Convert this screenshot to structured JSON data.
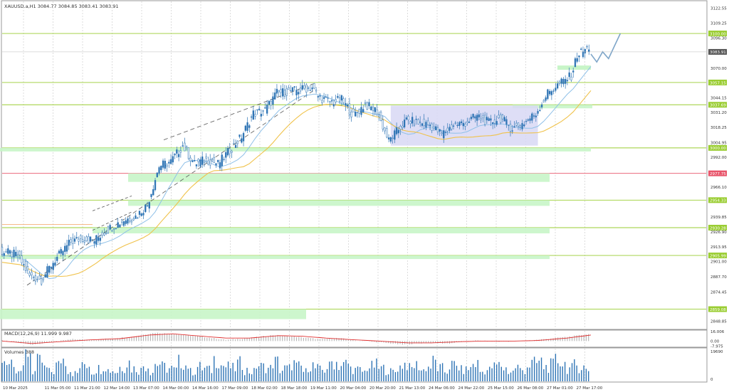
{
  "symbol_header": "XAUUSD.a,H1  3084.77 3084.85 3083.41 3083.91",
  "macd_header": "MACD(12,26,9) 11.999 9.987",
  "volume_header": "Volumes 388",
  "colors": {
    "background": "#ffffff",
    "grid": "#d4d4d4",
    "candle_up": "#2e74b5",
    "candle_down": "#2e74b5",
    "zone_fill": "#c8f5c8",
    "level_line": "#9acd32",
    "red_level": "#e8546a",
    "range_box": "#d8d8f5",
    "ma_fast": "#8fc0e8",
    "ma_slow": "#f0c24a",
    "macd_hist": "#b3b3b3",
    "macd_signal": "#e03030",
    "volume_bar": "#2e74b5"
  },
  "chart_data": [
    {
      "type": "candlestick",
      "title": "XAUUSD.a,H1",
      "current_price": 3083.91,
      "ylim": [
        2842,
        3128
      ],
      "y_ticks": [
        "3122.55",
        "3109.25",
        "3096.30",
        "3083.91",
        "3070.00",
        "3057.15",
        "3044.15",
        "3037.69",
        "3031.20",
        "3018.25",
        "3004.95",
        "3000.00",
        "2992.00",
        "2977.75",
        "2966.10",
        "2954.33",
        "2939.85",
        "2930.28",
        "2926.90",
        "2913.95",
        "2905.99",
        "2901.00",
        "2887.70",
        "2874.45",
        "2859.08",
        "2848.85"
      ],
      "x_ticks": [
        "10 Mar 2025",
        "11 Mar 05:00",
        "11 Mar 21:00",
        "12 Mar 14:00",
        "13 Mar 07:00",
        "14 Mar 00:00",
        "14 Mar 16:00",
        "17 Mar 09:00",
        "18 Mar 02:00",
        "18 Mar 18:00",
        "19 Mar 11:00",
        "20 Mar 04:00",
        "20 Mar 20:00",
        "21 Mar 13:00",
        "24 Mar 06:00",
        "24 Mar 22:00",
        "25 Mar 15:00",
        "26 Mar 08:00",
        "27 Mar 01:00",
        "27 Mar 17:00"
      ],
      "price_path": [
        [
          0,
          2910
        ],
        [
          3,
          2906
        ],
        [
          5,
          2888
        ],
        [
          7,
          2885
        ],
        [
          9,
          2900
        ],
        [
          12,
          2918
        ],
        [
          14,
          2921
        ],
        [
          16,
          2919
        ],
        [
          18,
          2928
        ],
        [
          21,
          2937
        ],
        [
          23,
          2940
        ],
        [
          25,
          2950
        ],
        [
          27,
          2984
        ],
        [
          29,
          2988
        ],
        [
          31,
          3002
        ],
        [
          33,
          2986
        ],
        [
          35,
          2990
        ],
        [
          37,
          2986
        ],
        [
          39,
          2998
        ],
        [
          41,
          3010
        ],
        [
          43,
          3030
        ],
        [
          45,
          3033
        ],
        [
          47,
          3048
        ],
        [
          50,
          3050
        ],
        [
          53,
          3053
        ],
        [
          54,
          3045
        ],
        [
          56,
          3040
        ],
        [
          58,
          3042
        ],
        [
          60,
          3028
        ],
        [
          62,
          3038
        ],
        [
          64,
          3032
        ],
        [
          66,
          3006
        ],
        [
          67,
          3012
        ],
        [
          69,
          3024
        ],
        [
          71,
          3022
        ],
        [
          73,
          3020
        ],
        [
          75,
          3012
        ],
        [
          77,
          3020
        ],
        [
          79,
          3022
        ],
        [
          81,
          3028
        ],
        [
          83,
          3022
        ],
        [
          85,
          3026
        ],
        [
          87,
          3017
        ],
        [
          89,
          3022
        ],
        [
          91,
          3030
        ],
        [
          93,
          3048
        ],
        [
          95,
          3056
        ],
        [
          97,
          3063
        ],
        [
          98,
          3081
        ],
        [
          100,
          3088
        ]
      ],
      "projection_path": [
        [
          100,
          3082
        ],
        [
          101,
          3075
        ],
        [
          102,
          3084
        ],
        [
          103,
          3078
        ],
        [
          105,
          3100
        ]
      ],
      "zones": [
        {
          "label": "3100.00",
          "price": 3100.0
        },
        {
          "label": "3057.15",
          "price": 3057.15
        },
        {
          "label": "3037.69",
          "price": 3037.69
        },
        {
          "label": "3000.00",
          "price": 3000.0
        },
        {
          "label": "2977.75",
          "price": 2977.75
        },
        {
          "label": "2954.33",
          "price": 2954.33
        },
        {
          "label": "2930.28",
          "price": 2930.28
        },
        {
          "label": "2905.99",
          "price": 2905.99
        },
        {
          "label": "2859.08",
          "price": 2859.08
        }
      ],
      "range_box": {
        "from_bar": 66,
        "to_bar": 91,
        "high": 3037,
        "low": 3002
      }
    },
    {
      "type": "bar",
      "title": "MACD(12,26,9)",
      "ylim": [
        -9,
        17
      ],
      "y_ticks": [
        "16.006",
        "0.00",
        "-7.975"
      ],
      "macd_path": [
        [
          0,
          1
        ],
        [
          5,
          -6
        ],
        [
          8,
          -2
        ],
        [
          12,
          3
        ],
        [
          16,
          2
        ],
        [
          18,
          4
        ],
        [
          22,
          7
        ],
        [
          26,
          14
        ],
        [
          30,
          11
        ],
        [
          34,
          7
        ],
        [
          38,
          2
        ],
        [
          42,
          5
        ],
        [
          46,
          10
        ],
        [
          50,
          7
        ],
        [
          54,
          3
        ],
        [
          57,
          5
        ],
        [
          60,
          1
        ],
        [
          64,
          -2
        ],
        [
          68,
          -6
        ],
        [
          72,
          -3
        ],
        [
          76,
          -4
        ],
        [
          80,
          1
        ],
        [
          84,
          -1
        ],
        [
          88,
          0
        ],
        [
          92,
          3
        ],
        [
          96,
          7
        ],
        [
          100,
          12
        ]
      ],
      "signal_path": [
        [
          0,
          0
        ],
        [
          5,
          -4
        ],
        [
          10,
          -1
        ],
        [
          15,
          2
        ],
        [
          20,
          4
        ],
        [
          25,
          10
        ],
        [
          29,
          12
        ],
        [
          34,
          8
        ],
        [
          38,
          5
        ],
        [
          42,
          5
        ],
        [
          47,
          9
        ],
        [
          51,
          8
        ],
        [
          55,
          5
        ],
        [
          60,
          2
        ],
        [
          64,
          0
        ],
        [
          69,
          -3
        ],
        [
          73,
          -3
        ],
        [
          78,
          -1
        ],
        [
          82,
          0
        ],
        [
          87,
          0
        ],
        [
          91,
          1
        ],
        [
          96,
          5
        ],
        [
          100,
          10
        ]
      ]
    },
    {
      "type": "bar",
      "title": "Volumes",
      "ylim": [
        0,
        20000
      ],
      "y_ticks": [
        "19690",
        "0"
      ],
      "volume_levels": [
        0.55,
        0.8,
        0.45,
        0.35,
        0.95,
        0.3,
        0.6,
        0.4,
        0.3,
        0.5,
        0.7,
        0.35,
        0.25,
        0.45,
        0.55,
        0.3,
        0.4,
        0.5,
        0.35,
        0.3,
        0.45,
        0.6,
        0.4,
        0.35,
        0.5,
        0.3,
        0.55,
        0.45,
        0.4,
        0.35,
        0.6,
        0.5,
        0.3,
        0.45,
        0.4,
        0.35,
        0.7,
        0.5,
        0.45,
        0.4,
        0.55,
        0.35,
        0.3,
        0.5,
        0.45,
        0.4,
        0.6,
        0.35,
        0.4,
        0.55,
        0.45,
        0.3,
        0.5,
        0.4,
        0.35,
        0.45,
        0.6,
        0.5,
        0.55,
        0.4,
        0.35,
        0.3,
        0.45,
        0.5,
        0.4,
        0.35,
        0.3,
        0.45,
        0.55,
        0.4,
        0.5,
        0.35,
        0.45,
        0.6,
        0.4,
        0.3,
        0.5,
        0.45,
        0.35,
        0.4,
        0.55,
        0.3,
        0.35,
        0.45,
        0.5,
        0.4,
        0.3,
        0.45,
        0.35,
        0.5,
        0.55,
        0.6,
        0.45,
        0.5,
        0.65,
        0.55,
        0.4,
        0.5,
        0.45,
        0.35,
        0.4
      ]
    }
  ]
}
